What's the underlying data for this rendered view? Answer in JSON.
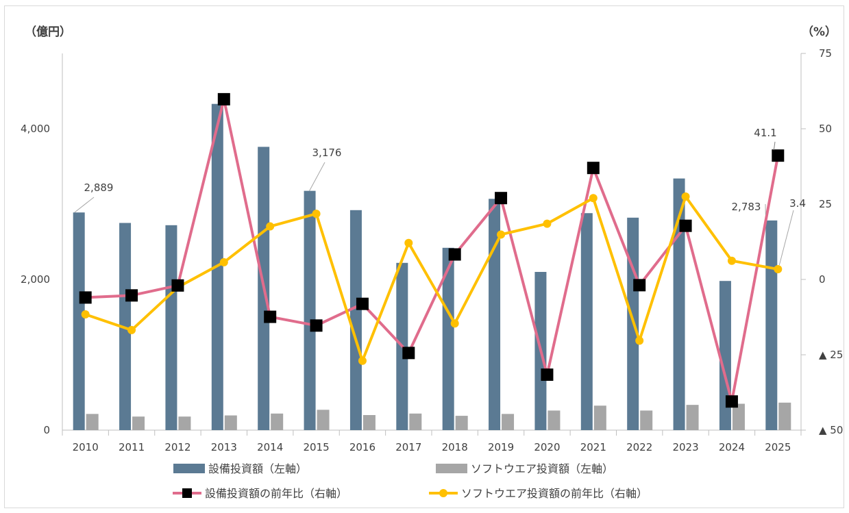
{
  "chart_data": {
    "type": "bar",
    "categories": [
      "2010",
      "2011",
      "2012",
      "2013",
      "2014",
      "2015",
      "2016",
      "2017",
      "2018",
      "2019",
      "2020",
      "2021",
      "2022",
      "2023",
      "2024",
      "2025"
    ],
    "left_axis": {
      "unit": "（億円）",
      "ylim": [
        0,
        5000
      ],
      "ticks": [
        0,
        2000,
        4000
      ],
      "tick_labels": [
        "0",
        "2,000",
        "4,000"
      ]
    },
    "right_axis": {
      "unit": "（%）",
      "ylim": [
        -50,
        75
      ],
      "ticks": [
        -50,
        -25,
        0,
        25,
        50,
        75
      ],
      "tick_labels": [
        "▲ 50",
        "▲ 25",
        "0",
        "25",
        "50",
        "75"
      ]
    },
    "series": [
      {
        "name": "設備投資額（左軸）",
        "kind": "bar",
        "axis": "left",
        "color": "#5b7a93",
        "values": [
          2889,
          2750,
          2720,
          4330,
          3760,
          3176,
          2920,
          2220,
          2420,
          3070,
          2100,
          2880,
          2820,
          3340,
          1980,
          2783
        ]
      },
      {
        "name": "ソフトウエア投資額（左軸）",
        "kind": "bar",
        "axis": "left",
        "color": "#a6a6a6",
        "values": [
          215,
          180,
          180,
          195,
          220,
          270,
          200,
          220,
          190,
          215,
          260,
          325,
          260,
          335,
          350,
          365
        ]
      },
      {
        "name": "設備投資額の前年比（右軸）",
        "kind": "line",
        "axis": "right",
        "color": "#e06c8c",
        "marker": "square",
        "values": [
          -6.0,
          -5.3,
          -2.0,
          59.8,
          -12.4,
          -15.3,
          -8.1,
          -24.4,
          8.3,
          27.0,
          -31.6,
          37.0,
          -1.9,
          17.8,
          -40.5,
          41.1
        ]
      },
      {
        "name": "ソフトウエア投資額の前年比（右軸）",
        "kind": "line",
        "axis": "right",
        "color": "#ffc000",
        "marker": "circle",
        "values": [
          -11.6,
          -16.8,
          -2.6,
          5.7,
          17.6,
          21.8,
          -27.0,
          12.1,
          -14.6,
          14.9,
          18.5,
          27.0,
          -20.3,
          27.5,
          6.2,
          3.4
        ]
      }
    ],
    "data_labels": [
      {
        "series": 0,
        "index": 0,
        "text": "2,889"
      },
      {
        "series": 0,
        "index": 5,
        "text": "3,176"
      },
      {
        "series": 0,
        "index": 15,
        "text": "2,783"
      },
      {
        "series": 2,
        "index": 15,
        "text": "41.1"
      },
      {
        "series": 3,
        "index": 15,
        "text": "3.4"
      }
    ],
    "legend_position": "bottom",
    "grid": false
  }
}
